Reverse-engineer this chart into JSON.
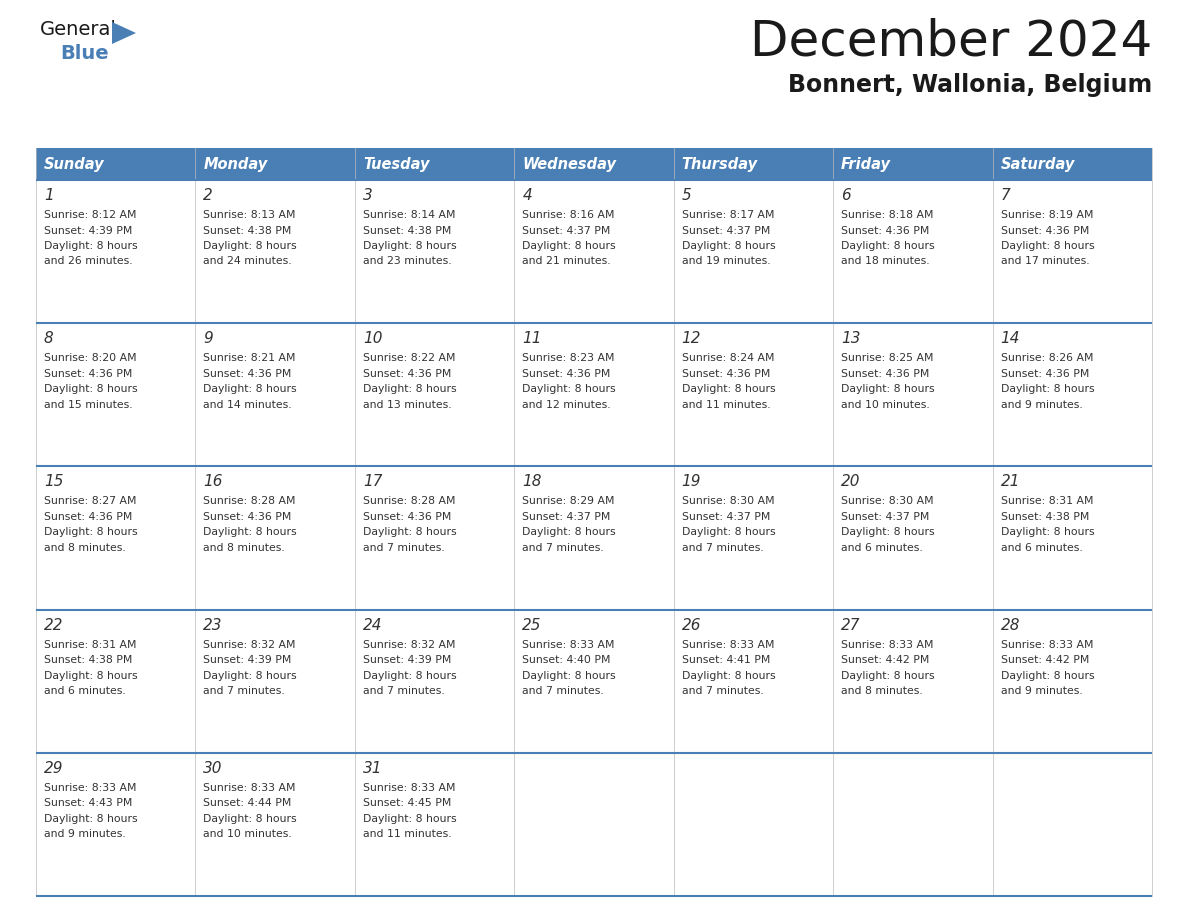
{
  "title": "December 2024",
  "subtitle": "Bonnert, Wallonia, Belgium",
  "header_color": "#4a7fb5",
  "header_text_color": "#ffffff",
  "border_color": "#4a7fb5",
  "day_headers": [
    "Sunday",
    "Monday",
    "Tuesday",
    "Wednesday",
    "Thursday",
    "Friday",
    "Saturday"
  ],
  "weeks": [
    [
      {
        "day": "1",
        "sunrise": "8:12 AM",
        "sunset": "4:39 PM",
        "daylight_h": "8 hours",
        "daylight_m": "and 26 minutes."
      },
      {
        "day": "2",
        "sunrise": "8:13 AM",
        "sunset": "4:38 PM",
        "daylight_h": "8 hours",
        "daylight_m": "and 24 minutes."
      },
      {
        "day": "3",
        "sunrise": "8:14 AM",
        "sunset": "4:38 PM",
        "daylight_h": "8 hours",
        "daylight_m": "and 23 minutes."
      },
      {
        "day": "4",
        "sunrise": "8:16 AM",
        "sunset": "4:37 PM",
        "daylight_h": "8 hours",
        "daylight_m": "and 21 minutes."
      },
      {
        "day": "5",
        "sunrise": "8:17 AM",
        "sunset": "4:37 PM",
        "daylight_h": "8 hours",
        "daylight_m": "and 19 minutes."
      },
      {
        "day": "6",
        "sunrise": "8:18 AM",
        "sunset": "4:36 PM",
        "daylight_h": "8 hours",
        "daylight_m": "and 18 minutes."
      },
      {
        "day": "7",
        "sunrise": "8:19 AM",
        "sunset": "4:36 PM",
        "daylight_h": "8 hours",
        "daylight_m": "and 17 minutes."
      }
    ],
    [
      {
        "day": "8",
        "sunrise": "8:20 AM",
        "sunset": "4:36 PM",
        "daylight_h": "8 hours",
        "daylight_m": "and 15 minutes."
      },
      {
        "day": "9",
        "sunrise": "8:21 AM",
        "sunset": "4:36 PM",
        "daylight_h": "8 hours",
        "daylight_m": "and 14 minutes."
      },
      {
        "day": "10",
        "sunrise": "8:22 AM",
        "sunset": "4:36 PM",
        "daylight_h": "8 hours",
        "daylight_m": "and 13 minutes."
      },
      {
        "day": "11",
        "sunrise": "8:23 AM",
        "sunset": "4:36 PM",
        "daylight_h": "8 hours",
        "daylight_m": "and 12 minutes."
      },
      {
        "day": "12",
        "sunrise": "8:24 AM",
        "sunset": "4:36 PM",
        "daylight_h": "8 hours",
        "daylight_m": "and 11 minutes."
      },
      {
        "day": "13",
        "sunrise": "8:25 AM",
        "sunset": "4:36 PM",
        "daylight_h": "8 hours",
        "daylight_m": "and 10 minutes."
      },
      {
        "day": "14",
        "sunrise": "8:26 AM",
        "sunset": "4:36 PM",
        "daylight_h": "8 hours",
        "daylight_m": "and 9 minutes."
      }
    ],
    [
      {
        "day": "15",
        "sunrise": "8:27 AM",
        "sunset": "4:36 PM",
        "daylight_h": "8 hours",
        "daylight_m": "and 8 minutes."
      },
      {
        "day": "16",
        "sunrise": "8:28 AM",
        "sunset": "4:36 PM",
        "daylight_h": "8 hours",
        "daylight_m": "and 8 minutes."
      },
      {
        "day": "17",
        "sunrise": "8:28 AM",
        "sunset": "4:36 PM",
        "daylight_h": "8 hours",
        "daylight_m": "and 7 minutes."
      },
      {
        "day": "18",
        "sunrise": "8:29 AM",
        "sunset": "4:37 PM",
        "daylight_h": "8 hours",
        "daylight_m": "and 7 minutes."
      },
      {
        "day": "19",
        "sunrise": "8:30 AM",
        "sunset": "4:37 PM",
        "daylight_h": "8 hours",
        "daylight_m": "and 7 minutes."
      },
      {
        "day": "20",
        "sunrise": "8:30 AM",
        "sunset": "4:37 PM",
        "daylight_h": "8 hours",
        "daylight_m": "and 6 minutes."
      },
      {
        "day": "21",
        "sunrise": "8:31 AM",
        "sunset": "4:38 PM",
        "daylight_h": "8 hours",
        "daylight_m": "and 6 minutes."
      }
    ],
    [
      {
        "day": "22",
        "sunrise": "8:31 AM",
        "sunset": "4:38 PM",
        "daylight_h": "8 hours",
        "daylight_m": "and 6 minutes."
      },
      {
        "day": "23",
        "sunrise": "8:32 AM",
        "sunset": "4:39 PM",
        "daylight_h": "8 hours",
        "daylight_m": "and 7 minutes."
      },
      {
        "day": "24",
        "sunrise": "8:32 AM",
        "sunset": "4:39 PM",
        "daylight_h": "8 hours",
        "daylight_m": "and 7 minutes."
      },
      {
        "day": "25",
        "sunrise": "8:33 AM",
        "sunset": "4:40 PM",
        "daylight_h": "8 hours",
        "daylight_m": "and 7 minutes."
      },
      {
        "day": "26",
        "sunrise": "8:33 AM",
        "sunset": "4:41 PM",
        "daylight_h": "8 hours",
        "daylight_m": "and 7 minutes."
      },
      {
        "day": "27",
        "sunrise": "8:33 AM",
        "sunset": "4:42 PM",
        "daylight_h": "8 hours",
        "daylight_m": "and 8 minutes."
      },
      {
        "day": "28",
        "sunrise": "8:33 AM",
        "sunset": "4:42 PM",
        "daylight_h": "8 hours",
        "daylight_m": "and 9 minutes."
      }
    ],
    [
      {
        "day": "29",
        "sunrise": "8:33 AM",
        "sunset": "4:43 PM",
        "daylight_h": "8 hours",
        "daylight_m": "and 9 minutes."
      },
      {
        "day": "30",
        "sunrise": "8:33 AM",
        "sunset": "4:44 PM",
        "daylight_h": "8 hours",
        "daylight_m": "and 10 minutes."
      },
      {
        "day": "31",
        "sunrise": "8:33 AM",
        "sunset": "4:45 PM",
        "daylight_h": "8 hours",
        "daylight_m": "and 11 minutes."
      },
      null,
      null,
      null,
      null
    ]
  ],
  "logo_general_color": "#1a1a1a",
  "logo_blue_color": "#4a7fb5",
  "logo_triangle_color": "#4a7fb5",
  "title_color": "#1a1a1a",
  "subtitle_color": "#1a1a1a"
}
